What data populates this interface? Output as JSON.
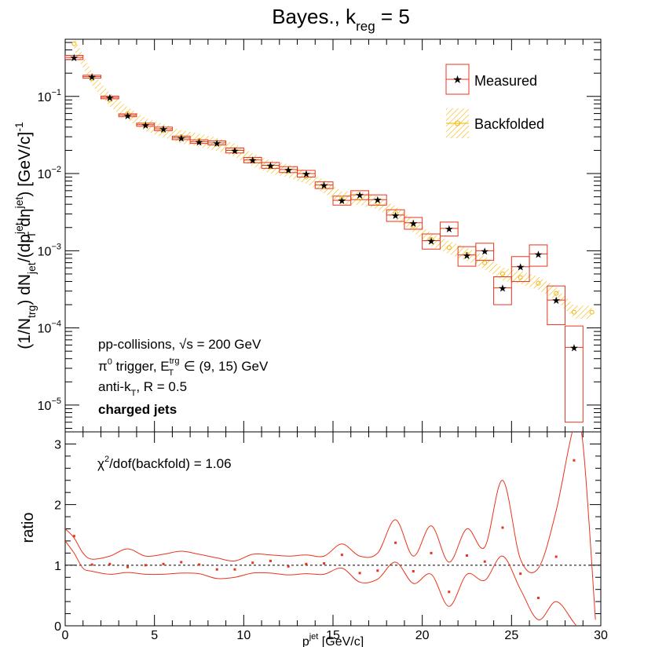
{
  "title_main": "Bayes., k",
  "title_sub": "reg",
  "title_tail": " = 5",
  "colors": {
    "measured": "#e8341c",
    "backfolded": "#f5b400",
    "axis": "#000000"
  },
  "legend": {
    "measured": "Measured",
    "backfolded": "Backfolded"
  },
  "top_ylabel": {
    "p1": "(1/N",
    "p1s": "trg",
    "p2": ") dN",
    "p2s": "jet",
    "p3": "/(dp",
    "p3sup": "jet",
    "p3sub": "T",
    "p4": " dη",
    "p4sup": "jet",
    "p5": ") [GeV/c]",
    "p5sup": "-1"
  },
  "annotations": {
    "line1_a": "pp-collisions, ",
    "line1_b": "√s",
    "line1_c": " = 200 GeV",
    "line2_a": "π",
    "line2_asup": "0",
    "line2_b": " trigger, E",
    "line2_bsup": "trg",
    "line2_bsub": "T",
    "line2_c": " ∈ (9, 15) GeV",
    "line3_a": "anti-k",
    "line3_asub": "T",
    "line3_b": ", R = 0.5",
    "line4": "charged jets"
  },
  "chi2_label": "χ",
  "chi2_sup": "2",
  "chi2_tail": "/dof(backfold) = 1.06",
  "bottom_ylabel": "ratio",
  "xlabel_main": "p",
  "xlabel_sup": "jet",
  "xlabel_tail": " [GeV/c]",
  "top_yticks": [
    {
      "base": "10",
      "exp": "−1",
      "value": 0.1
    },
    {
      "base": "10",
      "exp": "−2",
      "value": 0.01
    },
    {
      "base": "10",
      "exp": "−3",
      "value": 0.001
    },
    {
      "base": "10",
      "exp": "−4",
      "value": 0.0001
    },
    {
      "base": "10",
      "exp": "−5",
      "value": 1e-05
    }
  ],
  "chart_data": [
    {
      "type": "scatter",
      "title": "Bayes., k_reg = 5",
      "yscale": "log",
      "xlim": [
        0,
        30
      ],
      "ylim": [
        4.5e-06,
        0.55
      ],
      "legend_placement": "top-right",
      "series": [
        {
          "name": "Measured",
          "x": [
            0.5,
            1.5,
            2.5,
            3.5,
            4.5,
            5.5,
            6.5,
            7.5,
            8.5,
            9.5,
            10.5,
            11.5,
            12.5,
            13.5,
            14.5,
            15.5,
            16.5,
            17.5,
            18.5,
            19.5,
            20.5,
            21.5,
            22.5,
            23.5,
            24.5,
            25.5,
            26.5,
            27.5,
            28.5
          ],
          "y": [
            0.32,
            0.18,
            0.097,
            0.057,
            0.043,
            0.038,
            0.029,
            0.026,
            0.025,
            0.02,
            0.015,
            0.0128,
            0.0113,
            0.01,
            0.0071,
            0.0045,
            0.0053,
            0.0046,
            0.0029,
            0.0023,
            0.00135,
            0.00195,
            0.00088,
            0.001,
            0.00033,
            0.00062,
            0.00091,
            0.00023,
            5.6e-05
          ],
          "err_low": [
            0.02,
            0.008,
            0.004,
            0.0025,
            0.002,
            0.002,
            0.0015,
            0.0014,
            0.0015,
            0.0015,
            0.0012,
            0.0011,
            0.001,
            0.001,
            0.0007,
            0.0006,
            0.0007,
            0.0007,
            0.0005,
            0.0004,
            0.0003,
            0.0004,
            0.00025,
            0.00025,
            0.00013,
            0.00022,
            0.00028,
            0.00012,
            5e-05
          ],
          "err_high": [
            0.02,
            0.008,
            0.004,
            0.0025,
            0.002,
            0.002,
            0.0015,
            0.0014,
            0.0015,
            0.0015,
            0.0012,
            0.0011,
            0.001,
            0.001,
            0.0007,
            0.0006,
            0.0007,
            0.0007,
            0.0005,
            0.0004,
            0.0003,
            0.0004,
            0.00025,
            0.00025,
            0.00013,
            0.00022,
            0.00028,
            0.00012,
            5e-05
          ]
        },
        {
          "name": "Backfolded",
          "x": [
            0.5,
            1.5,
            2.5,
            3.5,
            4.5,
            5.5,
            6.5,
            7.5,
            8.5,
            9.5,
            10.5,
            11.5,
            12.5,
            13.5,
            14.5,
            15.5,
            16.5,
            17.5,
            18.5,
            19.5,
            20.5,
            21.5,
            22.5,
            23.5,
            24.5,
            25.5,
            26.5,
            27.5,
            28.5,
            29.5
          ],
          "y": [
            0.48,
            0.17,
            0.09,
            0.06,
            0.043,
            0.036,
            0.03,
            0.027,
            0.024,
            0.02,
            0.015,
            0.0122,
            0.0108,
            0.009,
            0.0068,
            0.0048,
            0.0048,
            0.0042,
            0.0031,
            0.0021,
            0.0014,
            0.0011,
            0.0009,
            0.0007,
            0.0005,
            0.00045,
            0.00038,
            0.00028,
            0.00016,
            0.00016
          ]
        }
      ]
    },
    {
      "type": "scatter",
      "ylabel": "ratio",
      "xlim": [
        0,
        30
      ],
      "ylim": [
        0,
        3.2
      ],
      "reference_line": 1,
      "series": [
        {
          "x": [
            0.5,
            1.5,
            2.5,
            3.5,
            4.5,
            5.5,
            6.5,
            7.5,
            8.5,
            9.5,
            10.5,
            11.5,
            12.5,
            13.5,
            14.5,
            15.5,
            16.5,
            17.5,
            18.5,
            19.5,
            20.5,
            21.5,
            22.5,
            23.5,
            24.5,
            25.5,
            26.5,
            27.5,
            28.5
          ],
          "y": [
            1.48,
            1.01,
            1.02,
            0.97,
            1.0,
            1.02,
            1.05,
            1.01,
            0.93,
            0.93,
            1.04,
            1.07,
            0.98,
            1.02,
            1.03,
            1.17,
            0.87,
            0.91,
            1.37,
            0.9,
            1.2,
            0.56,
            1.16,
            1.06,
            1.62,
            0.86,
            0.46,
            1.14,
            2.73
          ]
        }
      ],
      "band_upper": [
        [
          0,
          1.6
        ],
        [
          0.5,
          1.45
        ],
        [
          1,
          1.2
        ],
        [
          1.5,
          1.1
        ],
        [
          2.5,
          1.15
        ],
        [
          3.5,
          1.27
        ],
        [
          4.5,
          1.15
        ],
        [
          5.5,
          1.18
        ],
        [
          6.5,
          1.23
        ],
        [
          7.5,
          1.18
        ],
        [
          8.5,
          1.12
        ],
        [
          9.5,
          1.07
        ],
        [
          10.5,
          1.18
        ],
        [
          11.5,
          1.17
        ],
        [
          12.5,
          1.15
        ],
        [
          13.5,
          1.17
        ],
        [
          14.5,
          1.15
        ],
        [
          15.5,
          1.35
        ],
        [
          16.5,
          1.15
        ],
        [
          17.5,
          1.2
        ],
        [
          18.5,
          1.75
        ],
        [
          19.5,
          1.15
        ],
        [
          20.5,
          1.65
        ],
        [
          21.5,
          1.05
        ],
        [
          22.5,
          1.6
        ],
        [
          23.5,
          1.3
        ],
        [
          24.5,
          2.4
        ],
        [
          25.5,
          1.1
        ],
        [
          26.5,
          0.95
        ],
        [
          27.5,
          1.9
        ],
        [
          28.5,
          3.3
        ],
        [
          29,
          3.0
        ],
        [
          29.7,
          0.1
        ]
      ],
      "band_lower": [
        [
          0,
          1.4
        ],
        [
          0.5,
          1.2
        ],
        [
          1,
          0.95
        ],
        [
          1.5,
          0.9
        ],
        [
          2.5,
          0.85
        ],
        [
          3.5,
          0.88
        ],
        [
          4.5,
          0.85
        ],
        [
          5.5,
          0.85
        ],
        [
          6.5,
          0.87
        ],
        [
          7.5,
          0.86
        ],
        [
          8.5,
          0.78
        ],
        [
          9.5,
          0.8
        ],
        [
          10.5,
          0.87
        ],
        [
          11.5,
          0.87
        ],
        [
          12.5,
          0.84
        ],
        [
          13.5,
          0.86
        ],
        [
          14.5,
          0.85
        ],
        [
          15.5,
          0.95
        ],
        [
          16.5,
          0.72
        ],
        [
          17.5,
          0.77
        ],
        [
          18.5,
          1.05
        ],
        [
          19.5,
          0.7
        ],
        [
          20.5,
          0.85
        ],
        [
          21.5,
          0.32
        ],
        [
          22.5,
          0.85
        ],
        [
          23.5,
          0.75
        ],
        [
          24.5,
          1.15
        ],
        [
          25.5,
          0.6
        ],
        [
          26.5,
          0.1
        ],
        [
          27.5,
          0.4
        ],
        [
          28.5,
          0.05
        ],
        [
          29.2,
          -0.2
        ]
      ]
    }
  ]
}
